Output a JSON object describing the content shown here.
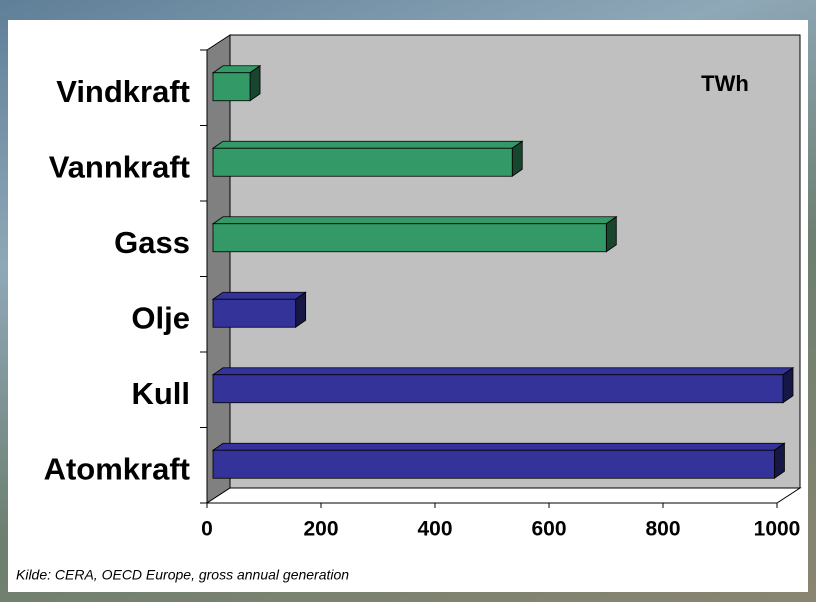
{
  "chart_data": {
    "type": "bar",
    "orientation": "horizontal",
    "categories": [
      "Vindkraft",
      "Vannkraft",
      "Gass",
      "Olje",
      "Kull",
      "Atomkraft"
    ],
    "values": [
      65,
      525,
      690,
      145,
      1000,
      985
    ],
    "colors": [
      "#339966",
      "#339966",
      "#339966",
      "#333399",
      "#333399",
      "#333399"
    ],
    "xlim": [
      0,
      1000
    ],
    "xticks": [
      0,
      200,
      400,
      600,
      800,
      1000
    ],
    "annotation": "TWh",
    "source": "Kilde: CERA, OECD Europe, gross annual generation"
  }
}
